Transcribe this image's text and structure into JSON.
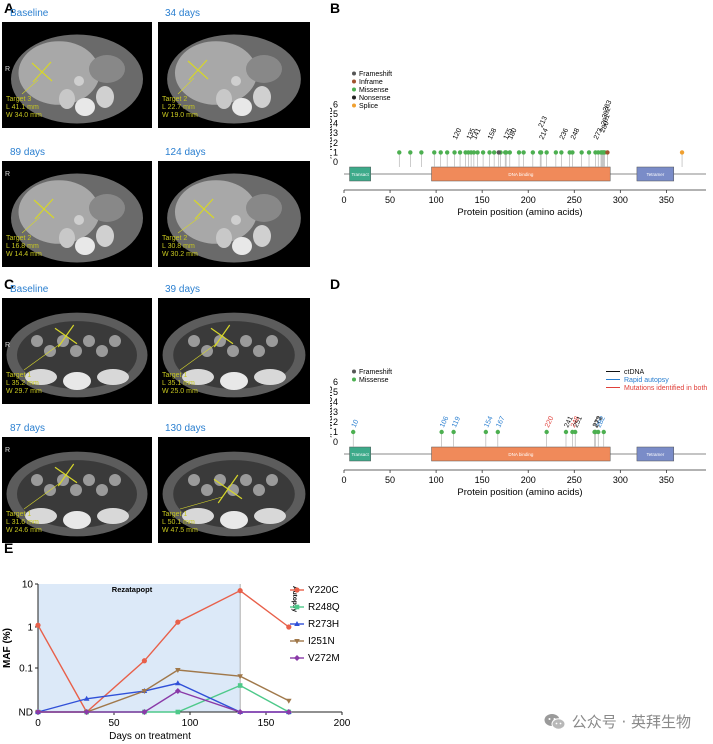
{
  "panelA": {
    "letter": "A",
    "images": [
      {
        "time": "Baseline",
        "target": "Target 3",
        "L": "L 41.1 mm",
        "W": "W 34.0 mm"
      },
      {
        "time": "34 days",
        "target": "Target 2",
        "L": "L 22.7 mm",
        "W": "W 19.0 mm"
      },
      {
        "time": "89 days",
        "target": "Target 2",
        "L": "L 16.8 mm",
        "W": "W 14.4 mm"
      },
      {
        "time": "124 days",
        "target": "Target 2",
        "L": "L 30.8 mm",
        "W": "W 30.2 mm"
      }
    ],
    "side_marker": "R"
  },
  "panelC": {
    "letter": "C",
    "images": [
      {
        "time": "Baseline",
        "target": "Target 1",
        "L": "L 35.2 mm",
        "W": "W 29.7 mm"
      },
      {
        "time": "39 days",
        "target": "Target 1",
        "L": "L 35.1 mm",
        "W": "W 25.0 mm"
      },
      {
        "time": "87 days",
        "target": "Target 1",
        "L": "L 31.6 mm",
        "W": "W 24.6 mm"
      },
      {
        "time": "130 days",
        "target": "Target 1",
        "L": "L 50.1 mm",
        "W": "W 47.5 mm"
      }
    ],
    "side_marker": "R"
  },
  "panelB": {
    "letter": "B",
    "ylabel": "# Mutations",
    "xlabel": "Protein position (amino acids)",
    "legend": [
      {
        "label": "Frameshift",
        "color": "#555555"
      },
      {
        "label": "Inframe",
        "color": "#a0522d"
      },
      {
        "label": "Missense",
        "color": "#4caf50"
      },
      {
        "label": "Nonsense",
        "color": "#222222"
      },
      {
        "label": "Splice",
        "color": "#f0a030"
      }
    ],
    "domains": [
      {
        "label": "Transact",
        "start": 6,
        "end": 29,
        "color": "#3daa8a"
      },
      {
        "label": "DNA binding",
        "start": 95,
        "end": 289,
        "color": "#f08a5a"
      },
      {
        "label": "Tetramer",
        "start": 318,
        "end": 358,
        "color": "#7a8cc8"
      }
    ],
    "labels": [
      "120",
      "135",
      "141",
      "158",
      "175",
      "180",
      "213",
      "214",
      "236",
      "248",
      "273",
      "280",
      "281",
      "282",
      "283"
    ]
  },
  "panelD": {
    "letter": "D",
    "ylabel": "# Mutations",
    "xlabel": "Protein position (amino acids)",
    "legend": [
      {
        "label": "Frameshift",
        "color": "#555555"
      },
      {
        "label": "Missense",
        "color": "#4caf50"
      }
    ],
    "legend2": [
      {
        "label": "ctDNA",
        "color": "#111111"
      },
      {
        "label": "Rapid autopsy",
        "color": "#2a7fd0"
      },
      {
        "label": "Mutations identified in both",
        "color": "#e0403a"
      }
    ],
    "domains": [
      {
        "label": "Transact",
        "start": 6,
        "end": 29,
        "color": "#3daa8a"
      },
      {
        "label": "DNA binding",
        "start": 95,
        "end": 289,
        "color": "#f08a5a"
      },
      {
        "label": "Tetramer",
        "start": 318,
        "end": 358,
        "color": "#7a8cc8"
      }
    ],
    "labels": [
      {
        "text": "10",
        "color": "#2a7fd0"
      },
      {
        "text": "106",
        "color": "#2a7fd0"
      },
      {
        "text": "119",
        "color": "#2a7fd0"
      },
      {
        "text": "154",
        "color": "#2a7fd0"
      },
      {
        "text": "167",
        "color": "#2a7fd0"
      },
      {
        "text": "220",
        "color": "#e0403a"
      },
      {
        "text": "241",
        "color": "#111111"
      },
      {
        "text": "248",
        "color": "#e0403a"
      },
      {
        "text": "251",
        "color": "#111111"
      },
      {
        "text": "272",
        "color": "#111111"
      },
      {
        "text": "273",
        "color": "#111111"
      },
      {
        "text": "282",
        "color": "#2a7fd0"
      }
    ]
  },
  "chart_data": [
    {
      "type": "scatter",
      "panel": "B",
      "xlabel": "Protein position (amino acids)",
      "ylabel": "# Mutations",
      "xlim": [
        0,
        393
      ],
      "ylim": [
        0,
        6
      ],
      "xticks": [
        "0",
        "50",
        "100",
        "150",
        "200",
        "250",
        "300",
        "350"
      ],
      "yticks": [
        "0",
        "1",
        "2",
        "3",
        "4",
        "5",
        "6"
      ],
      "series": [
        {
          "name": "Missense",
          "x": [
            60,
            72,
            84,
            98,
            105,
            112,
            120,
            126,
            132,
            135,
            138,
            141,
            145,
            151,
            158,
            163,
            170,
            175,
            176,
            180,
            190,
            195,
            205,
            213,
            214,
            220,
            230,
            236,
            245,
            248,
            258,
            266,
            273,
            276,
            279,
            280,
            281,
            282,
            283
          ],
          "y": [
            1,
            1,
            1,
            1,
            1,
            1,
            1,
            1,
            1,
            1,
            1,
            1,
            1,
            1,
            1,
            1,
            1,
            1,
            1,
            1,
            1,
            1,
            1,
            1,
            1,
            1,
            1,
            1,
            1,
            1,
            1,
            1,
            1,
            1,
            1,
            1,
            1,
            1,
            1
          ]
        },
        {
          "name": "Splice",
          "x": [
            367
          ],
          "y": [
            1
          ]
        },
        {
          "name": "Inframe",
          "x": [
            286
          ],
          "y": [
            1
          ]
        },
        {
          "name": "Frameshift",
          "x": [
            168
          ],
          "y": [
            1
          ]
        }
      ]
    },
    {
      "type": "scatter",
      "panel": "D",
      "xlabel": "Protein position (amino acids)",
      "ylabel": "# Mutations",
      "xlim": [
        0,
        393
      ],
      "ylim": [
        0,
        6
      ],
      "xticks": [
        "0",
        "50",
        "100",
        "150",
        "200",
        "250",
        "300",
        "350"
      ],
      "yticks": [
        "0",
        "1",
        "2",
        "3",
        "4",
        "5",
        "6"
      ],
      "series": [
        {
          "name": "Missense",
          "x": [
            10,
            106,
            119,
            154,
            167,
            220,
            241,
            248,
            251,
            272,
            273,
            276,
            282
          ],
          "y": [
            1,
            1,
            1,
            1,
            1,
            1,
            1,
            1,
            1,
            1,
            1,
            1,
            1
          ]
        }
      ]
    },
    {
      "type": "line",
      "panel": "E",
      "xlabel": "Days on treatment",
      "ylabel": "MAF (%)",
      "xlim": [
        0,
        200
      ],
      "xticks": [
        "0",
        "50",
        "100",
        "150",
        "200"
      ],
      "yticks": [
        "ND",
        "0.1",
        "1",
        "10"
      ],
      "shaded_label": "Rezatapopt",
      "shaded_range": [
        0,
        133
      ],
      "annotation": "Autopsy",
      "annotation_x": 133,
      "series": [
        {
          "name": "Y220C",
          "color": "#e8604a",
          "x": [
            0,
            32,
            70,
            92,
            133,
            165
          ],
          "y": [
            1.1,
            0.0,
            0.15,
            1.3,
            7.0,
            1.0
          ]
        },
        {
          "name": "R248Q",
          "color": "#4ec98a",
          "x": [
            0,
            32,
            70,
            92,
            133,
            165
          ],
          "y": [
            0.0,
            0.0,
            0.0,
            0.0,
            0.04,
            0.0
          ]
        },
        {
          "name": "R273H",
          "color": "#3050d8",
          "x": [
            0,
            32,
            70,
            92,
            133,
            165
          ],
          "y": [
            0.0,
            0.02,
            0.03,
            0.045,
            0.0,
            0.0
          ]
        },
        {
          "name": "I251N",
          "color": "#a0784a",
          "x": [
            0,
            32,
            70,
            92,
            133,
            165
          ],
          "y": [
            0.0,
            0.0,
            0.03,
            0.09,
            0.065,
            0.018
          ]
        },
        {
          "name": "V272M",
          "color": "#8a3aa8",
          "x": [
            0,
            32,
            70,
            92,
            133,
            165
          ],
          "y": [
            0.0,
            0.0,
            0.0,
            0.03,
            0.0,
            0.0
          ]
        }
      ]
    }
  ],
  "panelE": {
    "letter": "E",
    "ylabel": "MAF (%)",
    "xlabel": "Days on treatment",
    "shaded_label": "Rezatapopt",
    "annotation": "Autopsy"
  },
  "watermark": {
    "text": "公众号 · 英拜生物",
    "icon": "wechat-icon"
  }
}
